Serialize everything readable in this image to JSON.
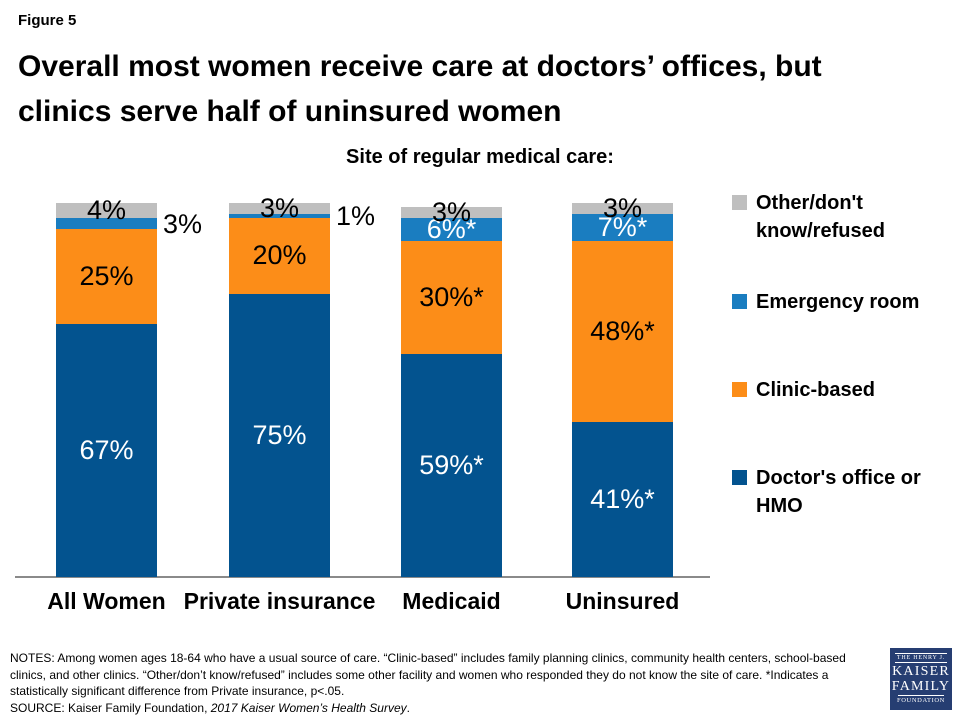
{
  "figure_label": "Figure 5",
  "title_line1": "Overall most women receive care at doctors’ offices, but",
  "title_line2": "clinics serve half of uninsured women",
  "chart_subtitle": "Site of regular medical care:",
  "colors": {
    "doctor_blue": "#03538F",
    "clinic_orange": "#FC8D18",
    "er_blue": "#1A7DC0",
    "other_gray": "#BFBFBF",
    "axis_gray": "#8A8A8A",
    "logo_navy": "#263E72"
  },
  "chart_data": {
    "type": "bar",
    "stacked": true,
    "title": "Site of regular medical care:",
    "categories": [
      "All Women",
      "Private insurance",
      "Medicaid",
      "Uninsured"
    ],
    "series": [
      {
        "name": "Doctor's office or HMO",
        "color": "#03538F",
        "label_color": "#ffffff",
        "values": [
          67,
          75,
          59,
          41
        ],
        "labels": [
          "67%",
          "75%",
          "59%*",
          "41%*"
        ]
      },
      {
        "name": "Clinic-based",
        "color": "#FC8D18",
        "label_color": "#000000",
        "values": [
          25,
          20,
          30,
          48
        ],
        "labels": [
          "25%",
          "20%",
          "30%*",
          "48%*"
        ]
      },
      {
        "name": "Emergency room",
        "color": "#1A7DC0",
        "label_color": "#ffffff",
        "values": [
          3,
          1,
          6,
          7
        ],
        "labels": [
          "3%",
          "1%",
          "6%*",
          "7%*"
        ],
        "label_outside": [
          true,
          true,
          false,
          false
        ]
      },
      {
        "name": "Other/don't know/refused",
        "color": "#BFBFBF",
        "label_color": "#000000",
        "values": [
          4,
          3,
          3,
          3
        ],
        "labels": [
          "4%",
          "3%",
          "3%",
          "3%"
        ]
      }
    ],
    "ylim": [
      0,
      100
    ],
    "legend_position": "right",
    "grid": false
  },
  "legend": [
    {
      "label": "Other/don't know/refused",
      "color": "#BFBFBF"
    },
    {
      "label": "Emergency room",
      "color": "#1A7DC0"
    },
    {
      "label": "Clinic-based",
      "color": "#FC8D18"
    },
    {
      "label": "Doctor's office or HMO",
      "color": "#03538F"
    }
  ],
  "notes": {
    "lines": [
      "NOTES:  Among  women  ages 18-64 who  have  a usual source of care. “Clinic-based” includes family planning clinics, community health centers, school-based",
      "clinics, and other clinics. “Other/don’t know/refused”  includes some other  facility and women  who responded they  do not know the  site of care. *Indicates a",
      "statistically significant difference from Private insurance, p<.05."
    ],
    "source_prefix": "SOURCE:  Kaiser Family Foundation, ",
    "source_italic": "2017 Kaiser Women’s Health Survey",
    "source_suffix": "."
  },
  "logo": {
    "top": "THE HENRY J.",
    "line1": "KAISER",
    "line2": "FAMILY",
    "bottom": "FOUNDATION"
  }
}
